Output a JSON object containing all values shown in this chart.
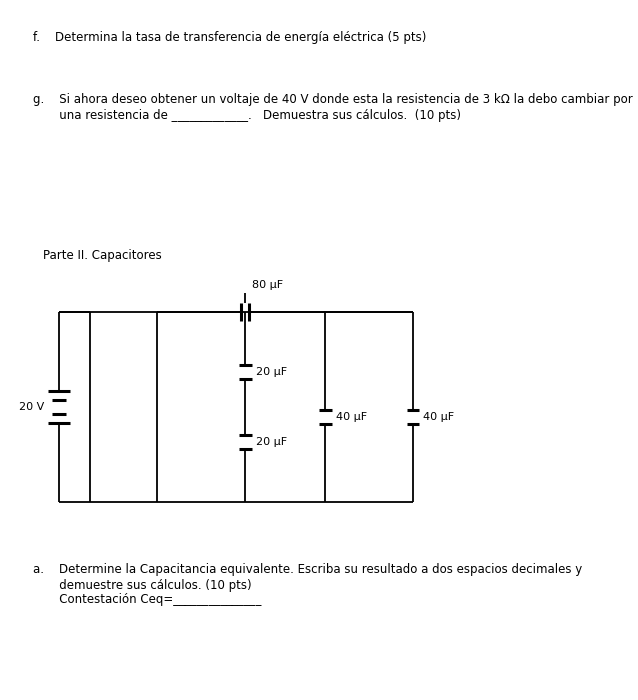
{
  "text_f": "f.    Determina la tasa de transferencia de energía eléctrica (5 pts)",
  "text_g1": "g.    Si ahora deseo obtener un voltaje de 40 V donde esta la resistencia de 3 kΩ la debo cambiar por",
  "text_g2": "       una resistencia de _____________.   Demuestra sus cálculos.  (10 pts)",
  "text_parte": "Parte II. Capacitores",
  "text_20v": "20 V",
  "text_80uF": "80 μF",
  "text_20uF_top": "20 μF",
  "text_20uF_bot": "20 μF",
  "text_40uF_mid": "40 μF",
  "text_40uF_right": "40 μF",
  "text_a1": "a.    Determine la Capacitancia equivalente. Escriba su resultado a dos espacios decimales y",
  "text_a2": "       demuestre sus cálculos. (10 pts)",
  "text_a3": "       Contestación Ceq=_______________",
  "bg_color": "#ffffff",
  "lc": "#000000",
  "fs": 8.5,
  "fs_lbl": 8.0,
  "lw": 1.3,
  "lw_cap": 2.2
}
